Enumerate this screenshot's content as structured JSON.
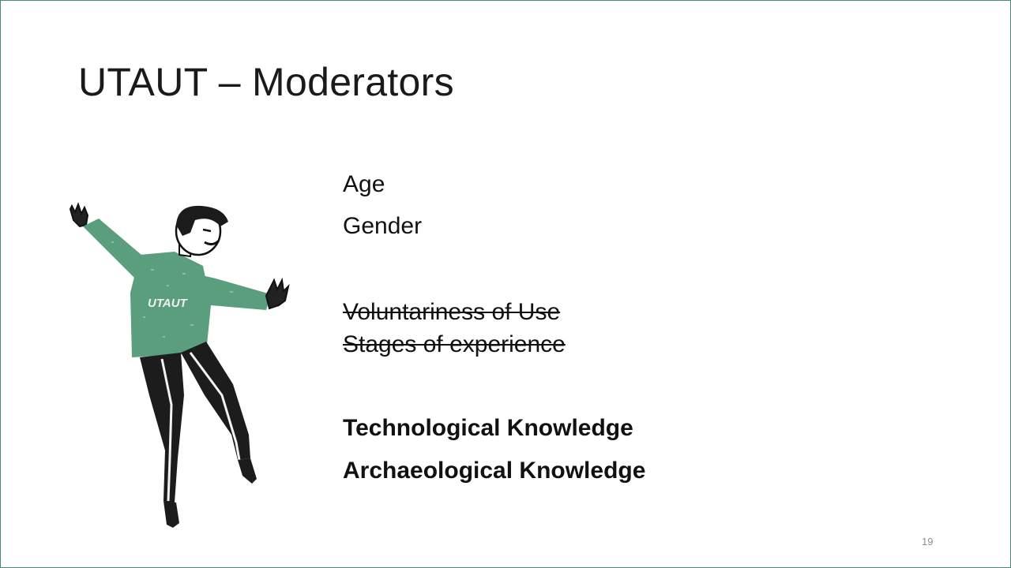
{
  "slide": {
    "title": "UTAUT – Moderators",
    "page_number": "19",
    "accent_color": "#5a9e7e",
    "border_color": "#4a8a78"
  },
  "figure": {
    "icon": "dancing-person-illustration",
    "shirt_text": "UTAUT",
    "shirt_color": "#5a9e7e"
  },
  "items": {
    "age": "Age",
    "gender": "Gender",
    "voluntariness": "Voluntariness of Use",
    "stages": "Stages of experience",
    "technological": "Technological Knowledge",
    "archaeological": "Archaeological Knowledge"
  }
}
